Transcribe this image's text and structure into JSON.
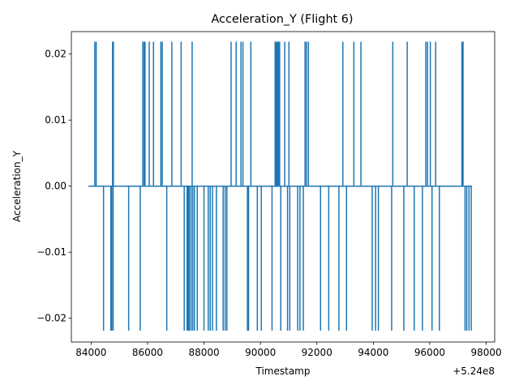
{
  "chart_data": {
    "type": "line",
    "title": "Acceleration_Y (Flight 6)",
    "xlabel": "Timestamp",
    "ylabel": "Acceleration_Y",
    "x_offset_label": "+5.24e8",
    "xlim": [
      524083300,
      524098300
    ],
    "ylim": [
      -0.0236,
      0.0234
    ],
    "x_ticks": [
      524084000,
      524086000,
      524088000,
      524090000,
      524092000,
      524094000,
      524096000,
      524098000
    ],
    "x_tick_labels": [
      "84000",
      "86000",
      "88000",
      "90000",
      "92000",
      "94000",
      "96000",
      "98000"
    ],
    "y_ticks": [
      -0.02,
      -0.01,
      0.0,
      0.01,
      0.02
    ],
    "y_tick_labels": [
      "−0.02",
      "−0.01",
      "0.00",
      "0.01",
      "0.02"
    ],
    "grid": false,
    "line_color": "#1f77b4",
    "series": [
      {
        "x_start": 524083900,
        "x_end": 524097500,
        "baseline": 0.0,
        "high": 0.0218,
        "low": -0.0218,
        "spikes_high": [
          524084130,
          524084180,
          524084760,
          524084790,
          524085830,
          524085880,
          524085910,
          524086060,
          524086210,
          524086470,
          524086520,
          524086860,
          524087190,
          524087580,
          524088960,
          524089140,
          524089310,
          524089380,
          524089660,
          524090520,
          524090560,
          524090600,
          524090640,
          524090680,
          524090860,
          524091010,
          524091580,
          524091630,
          524091700,
          524092920,
          524093310,
          524093560,
          524094690,
          524095200,
          524095860,
          524095920,
          524096020,
          524096210,
          524097140,
          524097180
        ],
        "spikes_low": [
          524084440,
          524084700,
          524084730,
          524084780,
          524085330,
          524085740,
          524086680,
          524087300,
          524087400,
          524087440,
          524087480,
          524087540,
          524087600,
          524087660,
          524087760,
          524088000,
          524088150,
          524088220,
          524088300,
          524088440,
          524088680,
          524088750,
          524088810,
          524089540,
          524089580,
          524089890,
          524090030,
          524090410,
          524090720,
          524090960,
          524091040,
          524091320,
          524091400,
          524091520,
          524092130,
          524092420,
          524092780,
          524093050,
          524093960,
          524094080,
          524094180,
          524094650,
          524095080,
          524095450,
          524095740,
          524096080,
          524096340,
          524097250,
          524097310,
          524097390,
          524097470
        ]
      }
    ]
  }
}
